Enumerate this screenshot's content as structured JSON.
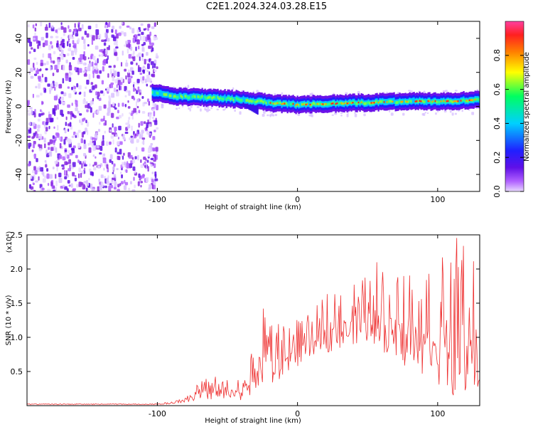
{
  "figure": {
    "title": "C2E1.2024.324.03.28.E15"
  },
  "chart_data": [
    {
      "type": "heatmap",
      "title": "C2E1.2024.324.03.28.E15",
      "xlabel": "Height of straight line (km)",
      "ylabel": "Frequency (Hz)",
      "xlim": [
        -193,
        130
      ],
      "ylim": [
        -50,
        50
      ],
      "xticks": [
        -100,
        0,
        100
      ],
      "yticks": [
        -40,
        -20,
        0,
        20,
        40
      ],
      "colorbar": {
        "label": "Normalized spectral amplitude",
        "range": [
          0,
          1
        ],
        "ticks": [
          0.0,
          0.2,
          0.4,
          0.6,
          0.8
        ],
        "tick_labels": [
          "0.0",
          "0.2",
          "0.4",
          "0.6",
          "0.8"
        ],
        "colormap": [
          "#e8d8ff",
          "#b060ff",
          "#6010e8",
          "#2020ff",
          "#00d0ff",
          "#00ff60",
          "#ffff00",
          "#ff8000",
          "#ff2020",
          "#ff40a0"
        ]
      },
      "description_of_features": {
        "noise_region_x": [
          -193,
          -105
        ],
        "band_center_track": [
          {
            "x": -103,
            "y": 8
          },
          {
            "x": -90,
            "y": 6
          },
          {
            "x": -60,
            "y": 5
          },
          {
            "x": -40,
            "y": 4
          },
          {
            "x": -30,
            "y": 3
          },
          {
            "x": -20,
            "y": 2
          },
          {
            "x": 0,
            "y": 1
          },
          {
            "x": 40,
            "y": 2
          },
          {
            "x": 80,
            "y": 3
          },
          {
            "x": 110,
            "y": 3
          },
          {
            "x": 130,
            "y": 4
          }
        ]
      }
    },
    {
      "type": "line",
      "xlabel": "Height of straight line (km)",
      "ylabel": "SNR (10 * v/v)",
      "y_multiplier_label": "(x10⁴)",
      "xlim": [
        -193,
        130
      ],
      "ylim": [
        0,
        2.5
      ],
      "xticks": [
        -100,
        0,
        100
      ],
      "yticks": [
        0.5,
        1.0,
        1.5,
        2.0,
        2.5
      ],
      "ytick_labels": [
        "0.5",
        "1.0",
        "1.5",
        "2.0",
        "2.5"
      ],
      "series": [
        {
          "color": "#ee3030",
          "envelope": [
            {
              "x": -193,
              "base": 0.01,
              "peak": 0.03
            },
            {
              "x": -100,
              "base": 0.01,
              "peak": 0.03
            },
            {
              "x": -85,
              "base": 0.03,
              "peak": 0.08
            },
            {
              "x": -75,
              "base": 0.06,
              "peak": 0.3
            },
            {
              "x": -60,
              "base": 0.08,
              "peak": 0.45
            },
            {
              "x": -40,
              "base": 0.08,
              "peak": 0.4
            },
            {
              "x": -30,
              "base": 0.2,
              "peak": 0.9
            },
            {
              "x": -25,
              "base": 0.3,
              "peak": 1.45
            },
            {
              "x": -15,
              "base": 0.3,
              "peak": 1.2
            },
            {
              "x": -5,
              "base": 0.5,
              "peak": 1.25
            },
            {
              "x": 10,
              "base": 0.7,
              "peak": 1.35
            },
            {
              "x": 25,
              "base": 0.8,
              "peak": 1.8
            },
            {
              "x": 40,
              "base": 0.9,
              "peak": 1.8
            },
            {
              "x": 55,
              "base": 0.9,
              "peak": 2.15
            },
            {
              "x": 70,
              "base": 0.6,
              "peak": 2.1
            },
            {
              "x": 85,
              "base": 0.5,
              "peak": 2.1
            },
            {
              "x": 100,
              "base": 0.3,
              "peak": 2.2
            },
            {
              "x": 113,
              "base": 0.1,
              "peak": 2.5
            },
            {
              "x": 125,
              "base": 0.1,
              "peak": 2.3
            },
            {
              "x": 130,
              "base": 0.2,
              "peak": 2.4
            }
          ]
        }
      ]
    }
  ]
}
